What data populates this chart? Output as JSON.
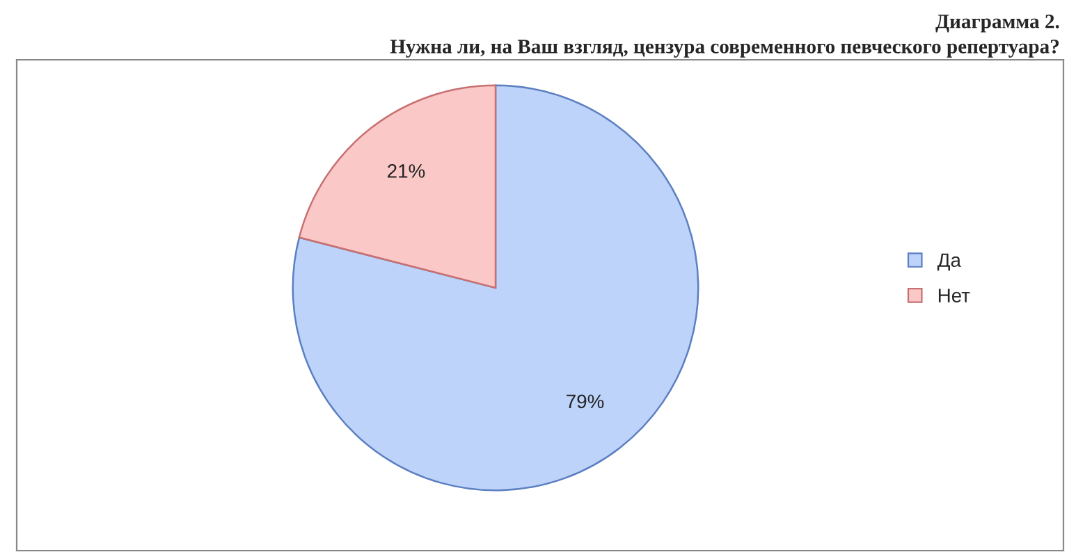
{
  "chart_data": {
    "type": "pie",
    "title": "Диаграмма 2.",
    "subtitle": "Нужна ли, на Ваш взгляд, цензура современного певческого репертуара?",
    "categories": [
      "Да",
      "Нет"
    ],
    "values": [
      79,
      21
    ],
    "value_labels": [
      "79%",
      "21%"
    ],
    "colors": [
      "#bdd3fa",
      "#fbc8c8"
    ],
    "legend": "right"
  }
}
